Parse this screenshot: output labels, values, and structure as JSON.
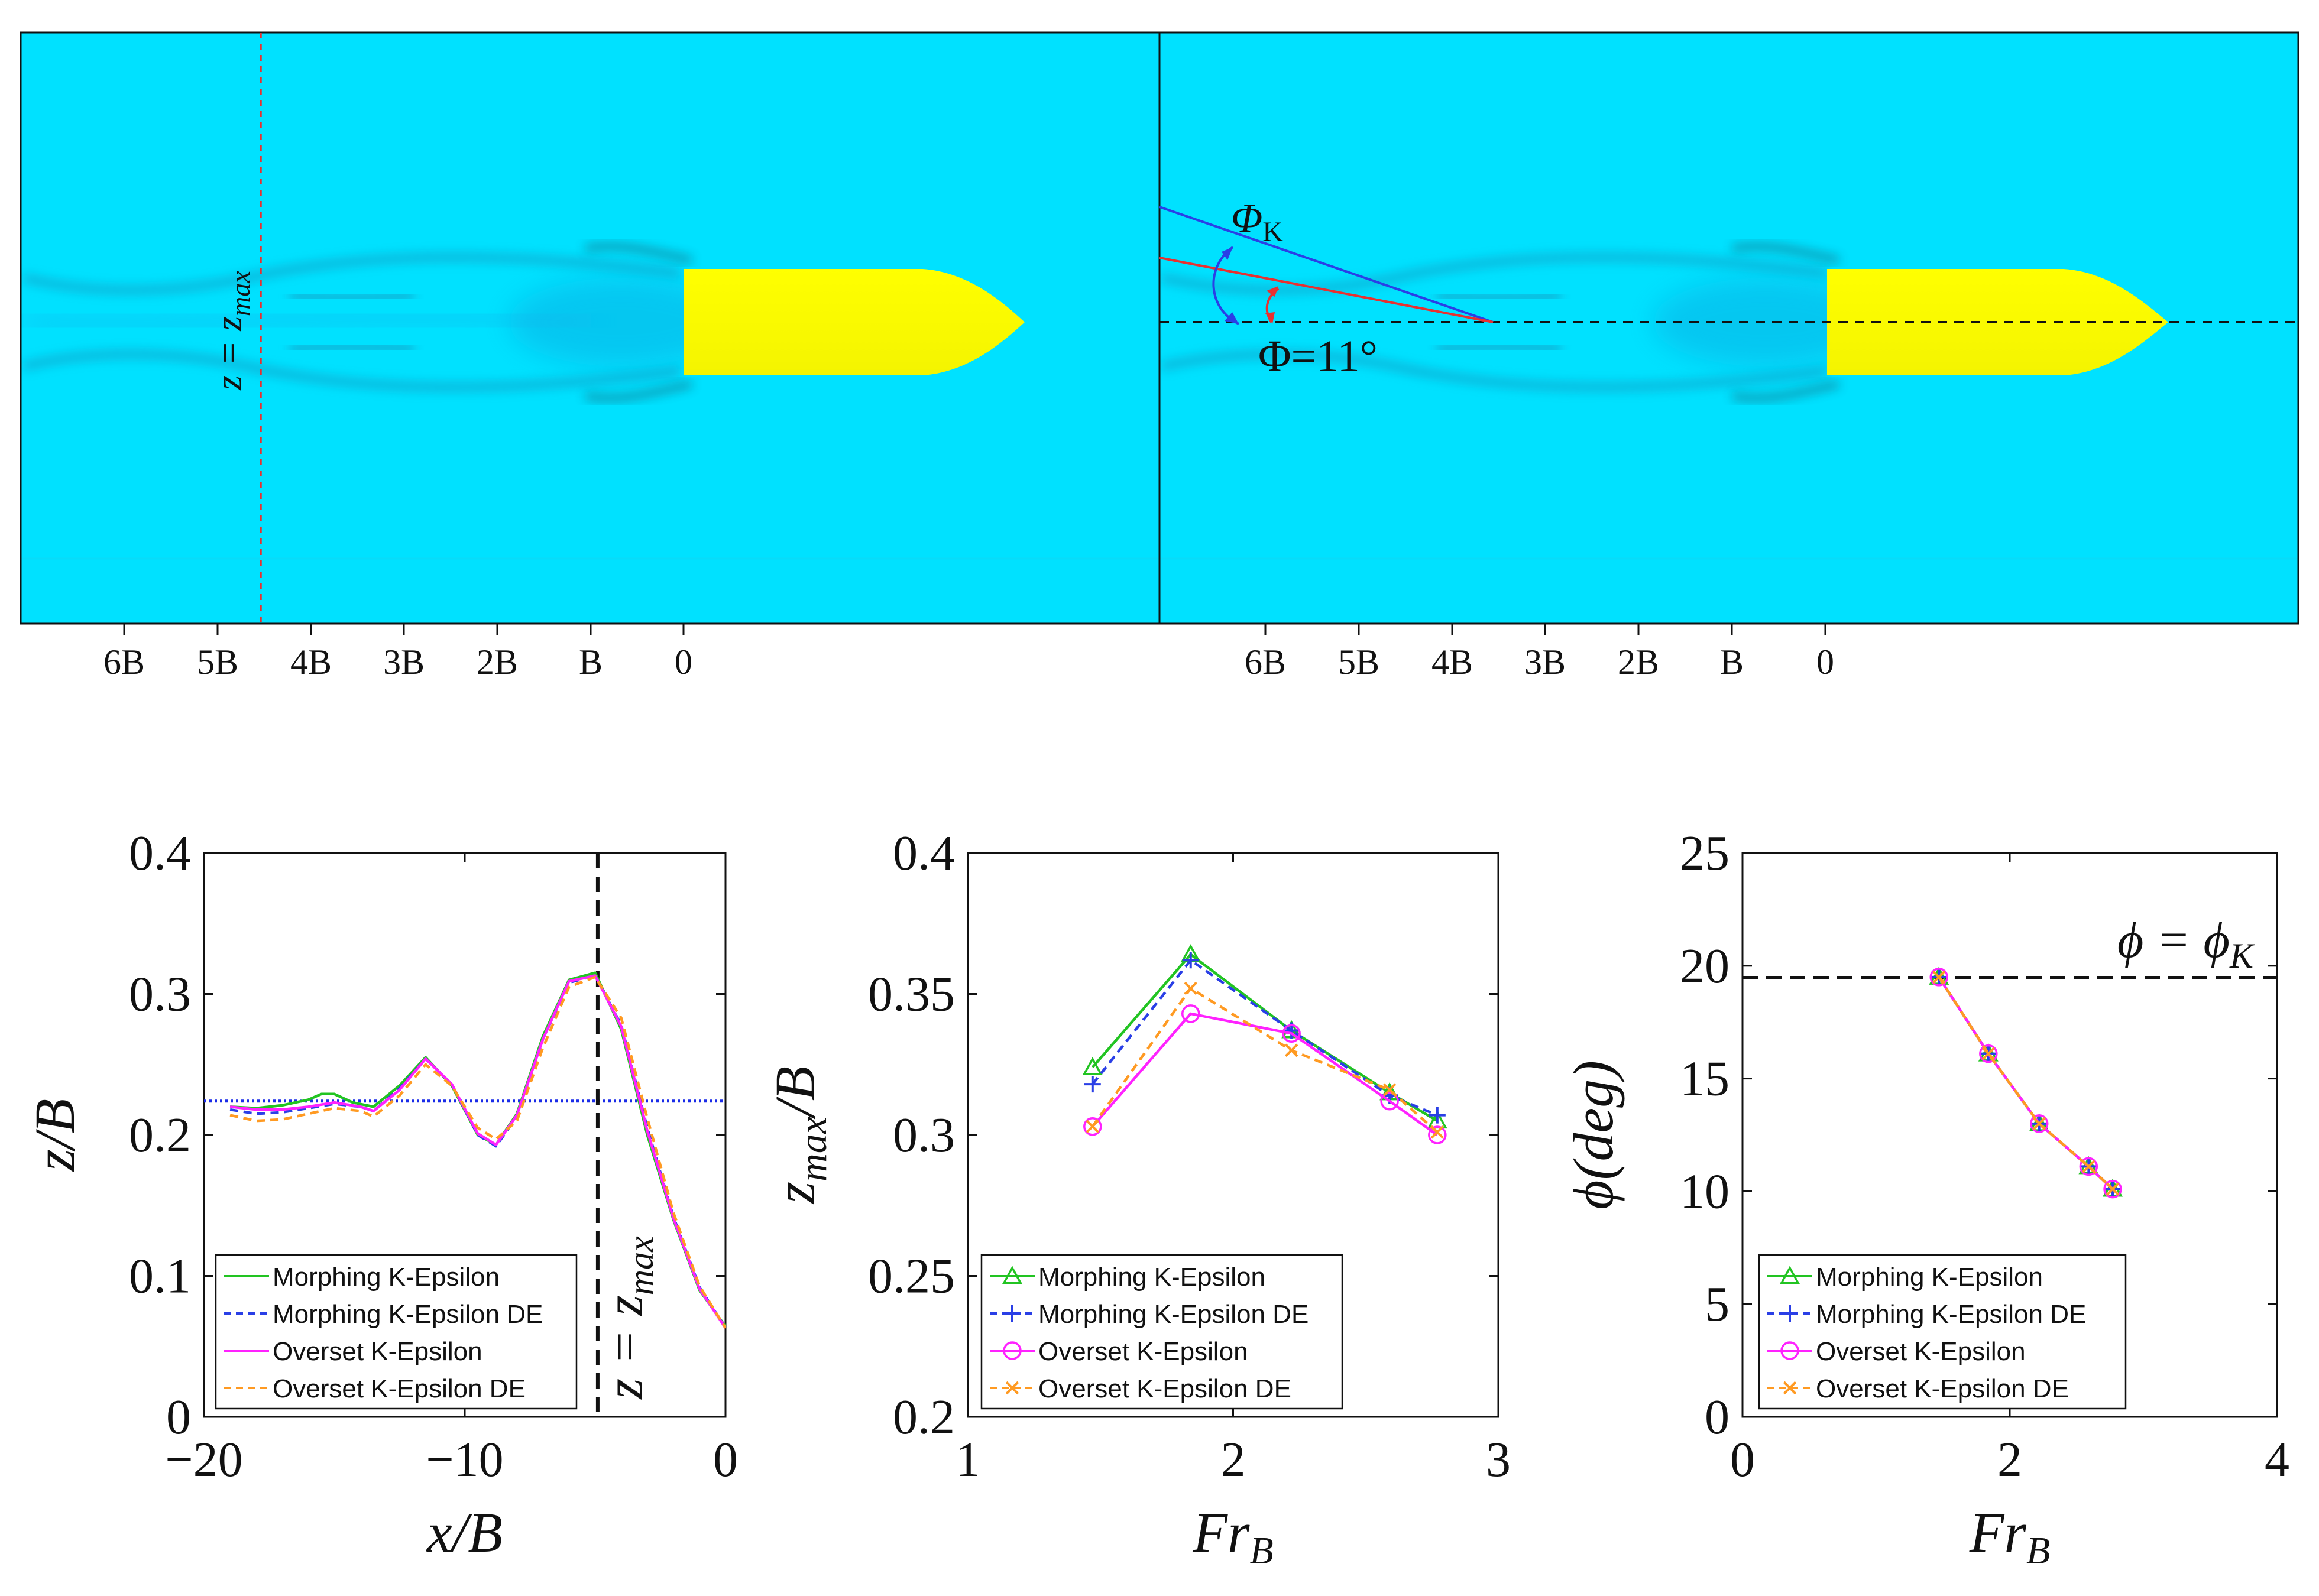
{
  "colors": {
    "water": "#00E1FF",
    "hull": "#FFFF00",
    "green": "#22C422",
    "blue": "#2A3FE6",
    "magenta": "#FF22FF",
    "orange": "#FF9A22",
    "red": "#E83030",
    "ref_dotted": "#1A2BE8"
  },
  "top_panels": {
    "left": {
      "line_label": "z = z",
      "line_label_sub": "max",
      "x_ticks": [
        "6B",
        "5B",
        "4B",
        "3B",
        "2B",
        "B",
        "0"
      ]
    },
    "right": {
      "phi_k_label": "Φ",
      "phi_k_sub": "K",
      "phi_label": "Φ=11°",
      "x_ticks": [
        "6B",
        "5B",
        "4B",
        "3B",
        "2B",
        "B",
        "0"
      ]
    }
  },
  "chart_data": [
    {
      "type": "line",
      "id": "wave-profile",
      "xlabel": "x/B",
      "ylabel": "z/B",
      "xlim": [
        -20,
        0
      ],
      "ylim": [
        0,
        0.4
      ],
      "xticks": [
        -20,
        -10,
        0
      ],
      "yticks": [
        0,
        0.1,
        0.2,
        0.3,
        0.4
      ],
      "xtick_labels": [
        "−20",
        "−10",
        "0"
      ],
      "ytick_labels": [
        "0",
        "0.1",
        "0.2",
        "0.3",
        "0.4"
      ],
      "reference_lines": [
        {
          "orientation": "horizontal",
          "value": 0.224,
          "style": "dotted",
          "color": "blue"
        },
        {
          "orientation": "vertical",
          "value": -4.9,
          "style": "dashed",
          "color": "black",
          "label": "z = z",
          "label_sub": "max"
        }
      ],
      "series": [
        {
          "name": "Morphing K-Epsilon",
          "style": "solid",
          "color": "green",
          "x": [
            -19,
            -18,
            -17,
            -16,
            -15.5,
            -15,
            -14.3,
            -13.5,
            -12.5,
            -11.5,
            -10.5,
            -9.5,
            -8.8,
            -8,
            -7,
            -6,
            -5,
            -4,
            -3,
            -2,
            -1,
            0
          ],
          "y": [
            0.22,
            0.219,
            0.221,
            0.225,
            0.229,
            0.229,
            0.223,
            0.22,
            0.235,
            0.255,
            0.235,
            0.2,
            0.193,
            0.215,
            0.27,
            0.31,
            0.315,
            0.275,
            0.2,
            0.14,
            0.09,
            0.064
          ]
        },
        {
          "name": "Morphing K-Epsilon DE",
          "style": "dashed",
          "color": "blue",
          "x": [
            -19,
            -18,
            -17,
            -16,
            -15,
            -14,
            -13.5,
            -12.5,
            -11.5,
            -10.5,
            -9.5,
            -8.8,
            -8,
            -7,
            -6,
            -5,
            -4,
            -3,
            -2,
            -1,
            0
          ],
          "y": [
            0.218,
            0.215,
            0.216,
            0.219,
            0.222,
            0.22,
            0.217,
            0.233,
            0.254,
            0.236,
            0.2,
            0.192,
            0.213,
            0.268,
            0.308,
            0.313,
            0.278,
            0.205,
            0.142,
            0.092,
            0.063
          ]
        },
        {
          "name": "Overset K-Epsilon",
          "style": "solid",
          "color": "magenta",
          "x": [
            -19,
            -18,
            -17,
            -16,
            -15,
            -14,
            -13.5,
            -12.5,
            -11.5,
            -10.5,
            -9.5,
            -8.8,
            -8,
            -7,
            -6,
            -5,
            -4,
            -3,
            -2,
            -1,
            0
          ],
          "y": [
            0.22,
            0.218,
            0.218,
            0.22,
            0.223,
            0.22,
            0.217,
            0.232,
            0.254,
            0.236,
            0.201,
            0.193,
            0.214,
            0.268,
            0.309,
            0.313,
            0.277,
            0.203,
            0.141,
            0.091,
            0.063
          ]
        },
        {
          "name": "Overset K-Epsilon DE",
          "style": "dashed",
          "color": "orange",
          "x": [
            -19,
            -18,
            -17,
            -16,
            -15,
            -14,
            -13.5,
            -12.5,
            -11.5,
            -10.5,
            -9.5,
            -8.8,
            -8,
            -7,
            -6,
            -5,
            -4,
            -3,
            -2,
            -1,
            0
          ],
          "y": [
            0.214,
            0.21,
            0.211,
            0.215,
            0.219,
            0.217,
            0.213,
            0.228,
            0.25,
            0.235,
            0.205,
            0.197,
            0.21,
            0.262,
            0.305,
            0.312,
            0.283,
            0.212,
            0.145,
            0.093,
            0.063
          ]
        }
      ],
      "legend": "bottom-left"
    },
    {
      "type": "line",
      "id": "zmax-vs-fr",
      "xlabel": "Fr",
      "xlabel_sub": "B",
      "ylabel": "z",
      "ylabel_sub": "max",
      "ylabel_suffix": "/B",
      "xlim": [
        1,
        3
      ],
      "ylim": [
        0.2,
        0.4
      ],
      "xticks": [
        1,
        2,
        3
      ],
      "yticks": [
        0.2,
        0.25,
        0.3,
        0.35,
        0.4
      ],
      "xtick_labels": [
        "1",
        "2",
        "3"
      ],
      "ytick_labels": [
        "0.2",
        "0.25",
        "0.3",
        "0.35",
        "0.4"
      ],
      "series": [
        {
          "name": "Morphing K-Epsilon",
          "style": "solid",
          "marker": "triangle",
          "color": "green",
          "x": [
            1.47,
            1.84,
            2.22,
            2.59,
            2.77
          ],
          "y": [
            0.324,
            0.364,
            0.337,
            0.315,
            0.305
          ]
        },
        {
          "name": "Morphing K-Epsilon DE",
          "style": "dashed",
          "marker": "plus",
          "color": "blue",
          "x": [
            1.47,
            1.84,
            2.22,
            2.59,
            2.77
          ],
          "y": [
            0.318,
            0.362,
            0.337,
            0.314,
            0.307
          ]
        },
        {
          "name": "Overset K-Epsilon",
          "style": "solid",
          "marker": "circle",
          "color": "magenta",
          "x": [
            1.47,
            1.84,
            2.22,
            2.59,
            2.77
          ],
          "y": [
            0.303,
            0.343,
            0.336,
            0.312,
            0.3
          ]
        },
        {
          "name": "Overset K-Epsilon DE",
          "style": "dashed",
          "marker": "x",
          "color": "orange",
          "x": [
            1.47,
            1.84,
            2.22,
            2.59,
            2.77
          ],
          "y": [
            0.303,
            0.352,
            0.33,
            0.316,
            0.301
          ]
        }
      ],
      "legend": "bottom-left"
    },
    {
      "type": "line",
      "id": "phi-vs-fr",
      "xlabel": "Fr",
      "xlabel_sub": "B",
      "ylabel": "ϕ(deg)",
      "xlim": [
        0,
        4
      ],
      "ylim": [
        0,
        25
      ],
      "xticks": [
        0,
        2,
        4
      ],
      "yticks": [
        0,
        5,
        10,
        15,
        20,
        25
      ],
      "xtick_labels": [
        "0",
        "2",
        "4"
      ],
      "ytick_labels": [
        "0",
        "5",
        "10",
        "15",
        "20",
        "25"
      ],
      "reference_lines": [
        {
          "orientation": "horizontal",
          "value": 19.47,
          "style": "dashed",
          "color": "black",
          "label": "ϕ = ϕ",
          "label_sub": "K"
        }
      ],
      "series": [
        {
          "name": "Morphing K-Epsilon",
          "style": "solid",
          "marker": "triangle",
          "color": "green",
          "x": [
            1.47,
            1.84,
            2.22,
            2.59,
            2.77
          ],
          "y": [
            19.5,
            16.1,
            13.0,
            11.1,
            10.1
          ]
        },
        {
          "name": "Morphing K-Epsilon DE",
          "style": "dashed",
          "marker": "plus",
          "color": "blue",
          "x": [
            1.47,
            1.84,
            2.22,
            2.59,
            2.77
          ],
          "y": [
            19.5,
            16.1,
            13.0,
            11.1,
            10.1
          ]
        },
        {
          "name": "Overset K-Epsilon",
          "style": "solid",
          "marker": "circle",
          "color": "magenta",
          "x": [
            1.47,
            1.84,
            2.22,
            2.59,
            2.77
          ],
          "y": [
            19.5,
            16.1,
            13.0,
            11.1,
            10.1
          ]
        },
        {
          "name": "Overset K-Epsilon DE",
          "style": "dashed",
          "marker": "x",
          "color": "orange",
          "x": [
            1.47,
            1.84,
            2.22,
            2.59,
            2.77
          ],
          "y": [
            19.5,
            16.1,
            13.0,
            11.1,
            10.1
          ]
        }
      ],
      "legend": "bottom-left"
    }
  ]
}
